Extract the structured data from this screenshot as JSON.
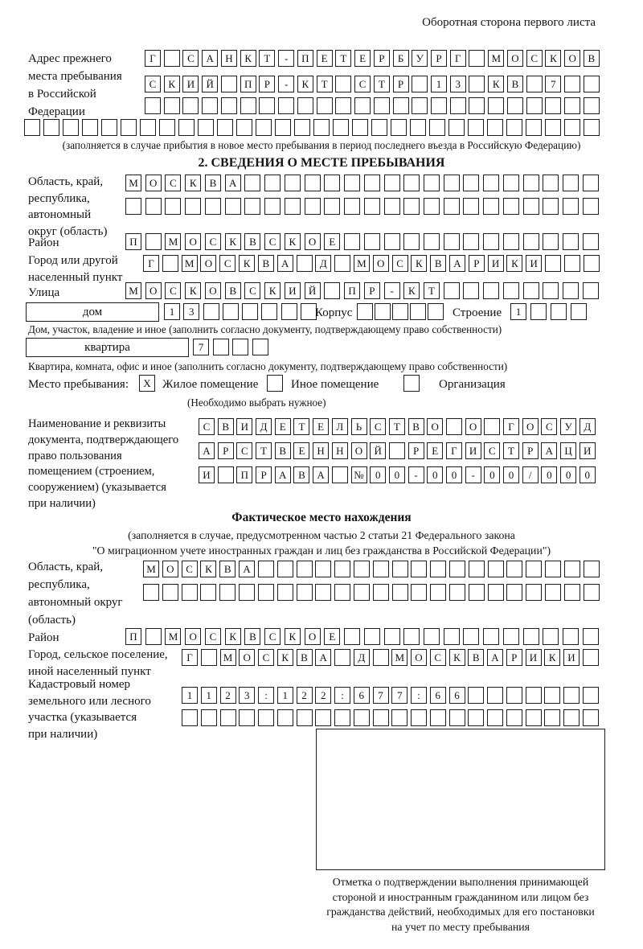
{
  "page": {
    "header_note": "Оборотная сторона первого листа"
  },
  "prev_address": {
    "label": "Адрес прежнего\nместа пребывания\nв Российской\nФедерации",
    "rows": [
      {
        "text": "Г САНКТ-ПЕТЕРБУРГ МОСКОВ",
        "len": 24
      },
      {
        "text": "СКИЙ ПР-КТ СТР 13 КВ 7",
        "len": 24
      },
      {
        "text": "",
        "len": 24
      },
      {
        "text": "",
        "len": 30
      }
    ],
    "caption": "(заполняется в случае прибытия в новое место пребывания в период последнего въезда в Российскую Федерацию)"
  },
  "section2": {
    "title": "2. СВЕДЕНИЯ О МЕСТЕ ПРЕБЫВАНИЯ",
    "region": {
      "label": "Область, край,\nреспублика,\nавтономный\nокруг (область)",
      "rows": [
        {
          "text": "МОСКВА",
          "len": 24
        },
        {
          "text": "",
          "len": 24
        }
      ]
    },
    "district": {
      "label": "Район",
      "row": {
        "text": "П МОСКВСКОЕ",
        "len": 24
      }
    },
    "city": {
      "label": "Город или другой\nнаселенный пункт",
      "row": {
        "text": "Г МОСКВА Д МОСКВАРИКИ",
        "len": 24
      }
    },
    "street": {
      "label": "Улица",
      "row": {
        "text": "МОСКОВСКИЙ ПР-КТ",
        "len": 24
      }
    },
    "house": {
      "box_label": "дом",
      "number": {
        "text": "13",
        "len": 8
      },
      "korpus_label": "Корпус",
      "korpus": {
        "text": "",
        "len": 5
      },
      "stroenie_label": "Строение",
      "stroenie": {
        "text": "1",
        "len": 4
      }
    },
    "house_caption": "Дом, участок, владение и иное (заполнить согласно документу, подтверждающему право собственности)",
    "apartment": {
      "box_label": "квартира",
      "number": {
        "text": "7",
        "len": 4
      }
    },
    "apartment_caption": "Квартира, комната, офис и иное (заполнить согласно документу, подтверждающему право собственности)",
    "stay": {
      "label": "Место пребывания:",
      "options": [
        {
          "mark": "X",
          "label": "Жилое помещение"
        },
        {
          "mark": "",
          "label": "Иное помещение"
        },
        {
          "mark": "",
          "label": "Организация"
        }
      ],
      "hint": "(Необходимо выбрать нужное)"
    },
    "doc": {
      "label": "Наименование и реквизиты\nдокумента, подтверждающего\nправо пользования\nпомещением (строением,\nсооружением) (указывается\nпри наличии)",
      "rows": [
        {
          "text": "СВИДЕТЕЛЬСТВО О ГОСУД",
          "len": 21
        },
        {
          "text": "АРСТВЕННОЙ РЕГИСТРАЦИ",
          "len": 21
        },
        {
          "text": "И ПРАВА №00-00-00/000",
          "len": 21
        }
      ]
    }
  },
  "actual_location": {
    "title": "Фактическое место нахождения",
    "caption1": "(заполняется в случае, предусмотренном частью 2 статьи 21 Федерального закона",
    "caption2": "\"О миграционном учете иностранных граждан и лиц без гражданства в Российской Федерации\")",
    "region": {
      "label": "Область, край,\nреспублика,\nавтономный округ\n(область)",
      "rows": [
        {
          "text": "МОСКВА",
          "len": 24
        },
        {
          "text": "",
          "len": 24
        }
      ]
    },
    "district": {
      "label": "Район",
      "row": {
        "text": "П МОСКВСКОЕ",
        "len": 24
      }
    },
    "city": {
      "label": "Город, сельское поселение,\nиной населенный пункт",
      "row": {
        "text": "Г МОСКВА Д МОСКВАРИКИ",
        "len": 22
      }
    },
    "cadastral": {
      "label": "Кадастровый номер\nземельного или лесного\nучастка (указывается\nпри наличии)",
      "rows": [
        {
          "text": "1123:122:677:66",
          "len": 22
        },
        {
          "text": "",
          "len": 22
        }
      ]
    },
    "stamp_caption": "Отметка о подтверждении выполнения принимающей\nстороной и иностранным гражданином или лицом без\nгражданства действий, необходимых для его постановки\nна учет по месту пребывания"
  }
}
